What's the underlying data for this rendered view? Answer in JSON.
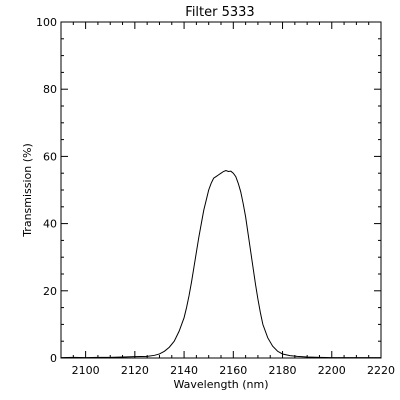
{
  "chart_data": {
    "type": "line",
    "title": "Filter 5333",
    "xlabel": "Wavelength (nm)",
    "ylabel": "Transmission (%)",
    "xlim": [
      2090,
      2220
    ],
    "ylim": [
      0,
      100
    ],
    "x_ticks": [
      2100,
      2120,
      2140,
      2160,
      2180,
      2200,
      2220
    ],
    "y_ticks": [
      0,
      20,
      40,
      60,
      80,
      100
    ],
    "grid": false,
    "series": [
      {
        "x": [
          2090,
          2095,
          2100,
          2105,
          2110,
          2115,
          2120,
          2125,
          2128,
          2130,
          2132,
          2134,
          2136,
          2138,
          2140,
          2141,
          2142,
          2143,
          2144,
          2145,
          2146,
          2147,
          2148,
          2149,
          2150,
          2151,
          2152,
          2153,
          2154,
          2155,
          2156,
          2157,
          2158,
          2159,
          2160,
          2161,
          2162,
          2163,
          2164,
          2165,
          2166,
          2167,
          2168,
          2169,
          2170,
          2171,
          2172,
          2174,
          2176,
          2178,
          2180,
          2183,
          2186,
          2190,
          2195,
          2200,
          2205,
          2210,
          2215,
          2220
        ],
        "y": [
          0.1,
          0.2,
          0.1,
          0.2,
          0.2,
          0.3,
          0.4,
          0.5,
          0.8,
          1.2,
          2.0,
          3.2,
          5.0,
          8.0,
          12.0,
          15.0,
          18.5,
          22.5,
          27.0,
          31.5,
          36.0,
          40.0,
          44.0,
          47.0,
          50.0,
          52.0,
          53.5,
          54.0,
          54.5,
          55.0,
          55.5,
          55.8,
          55.5,
          55.6,
          55.0,
          54.0,
          52.0,
          49.5,
          46.0,
          42.0,
          37.0,
          32.0,
          27.0,
          22.0,
          17.5,
          13.5,
          10.0,
          6.0,
          3.5,
          2.0,
          1.2,
          0.7,
          0.5,
          0.3,
          0.2,
          0.1,
          0.1,
          0.1,
          0.1,
          0.1
        ]
      }
    ]
  }
}
